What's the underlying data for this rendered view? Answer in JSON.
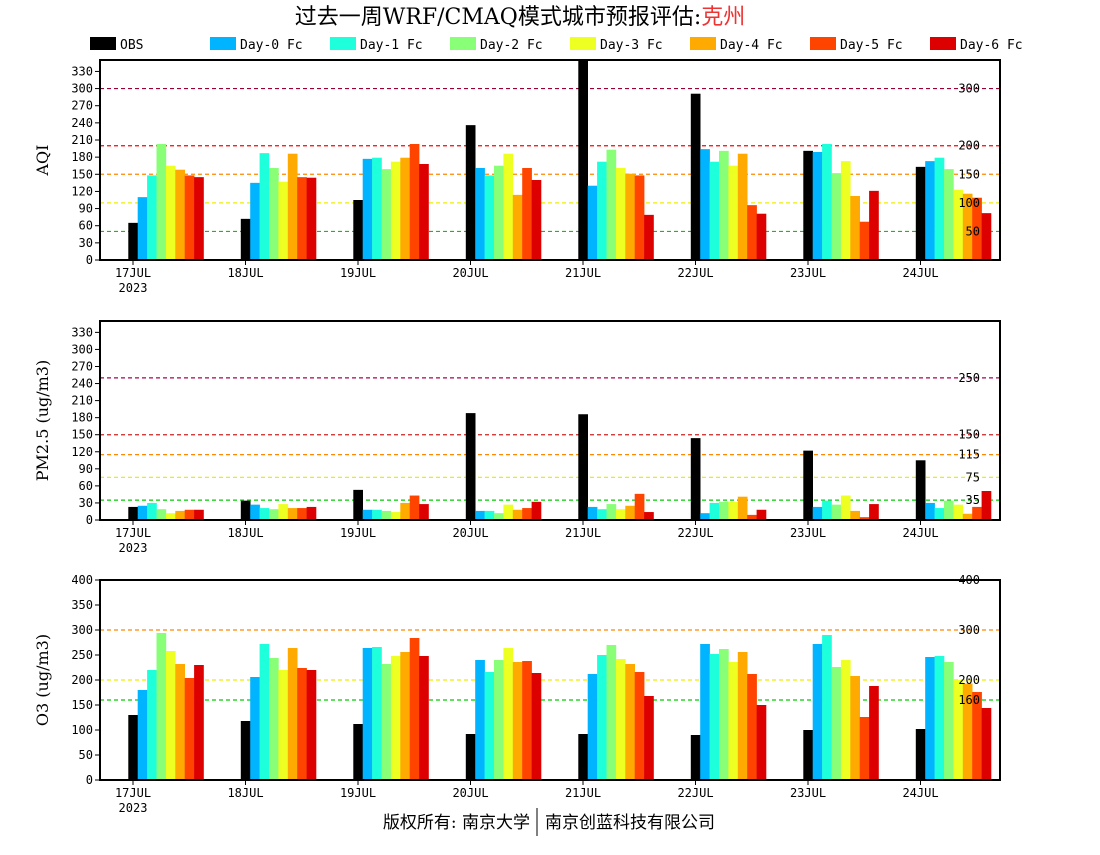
{
  "title": {
    "prefix": "过去一周WRF/CMAQ模式城市预报评估:",
    "city": "克州",
    "city_color": "#ee3333"
  },
  "footer": {
    "left": "版权所有: 南京大学",
    "right": "南京创蓝科技有限公司"
  },
  "legend": [
    {
      "name": "OBS",
      "color": "#000000"
    },
    {
      "name": "Day-0 Fc",
      "color": "#00b4ff"
    },
    {
      "name": "Day-1 Fc",
      "color": "#1effdc"
    },
    {
      "name": "Day-2 Fc",
      "color": "#88ff77"
    },
    {
      "name": "Day-3 Fc",
      "color": "#eeff22"
    },
    {
      "name": "Day-4 Fc",
      "color": "#ffaa00"
    },
    {
      "name": "Day-5 Fc",
      "color": "#ff4400"
    },
    {
      "name": "Day-6 Fc",
      "color": "#dd0000"
    }
  ],
  "chart_data": [
    {
      "type": "bar",
      "ylabel": "AQI",
      "ylim": [
        0,
        350
      ],
      "yticks": [
        0,
        30,
        60,
        90,
        120,
        150,
        180,
        210,
        240,
        270,
        300,
        330
      ],
      "categories": [
        "17JUL",
        "18JUL",
        "19JUL",
        "20JUL",
        "21JUL",
        "22JUL",
        "23JUL",
        "24JUL"
      ],
      "year_label": "2023",
      "thresholds": [
        {
          "value": 50,
          "label": "50",
          "color": "#00cc00"
        },
        {
          "value": 100,
          "label": "100",
          "color": "#eeee00"
        },
        {
          "value": 150,
          "label": "150",
          "color": "#ff8800"
        },
        {
          "value": 200,
          "label": "200",
          "color": "#ff0000"
        },
        {
          "value": 300,
          "label": "300",
          "color": "#990033"
        }
      ],
      "series": [
        {
          "name": "OBS",
          "values": [
            65,
            72,
            105,
            236,
            360,
            291,
            191,
            163
          ]
        },
        {
          "name": "Day-0 Fc",
          "values": [
            110,
            135,
            177,
            161,
            130,
            194,
            189,
            173
          ]
        },
        {
          "name": "Day-1 Fc",
          "values": [
            148,
            187,
            179,
            148,
            172,
            172,
            203,
            179
          ]
        },
        {
          "name": "Day-2 Fc",
          "values": [
            203,
            161,
            159,
            165,
            193,
            191,
            152,
            159
          ]
        },
        {
          "name": "Day-3 Fc",
          "values": [
            165,
            137,
            172,
            186,
            161,
            165,
            173,
            123
          ]
        },
        {
          "name": "Day-4 Fc",
          "values": [
            158,
            186,
            179,
            114,
            151,
            186,
            112,
            116
          ]
        },
        {
          "name": "Day-5 Fc",
          "values": [
            148,
            145,
            203,
            161,
            148,
            96,
            67,
            109
          ]
        },
        {
          "name": "Day-6 Fc",
          "values": [
            145,
            144,
            168,
            140,
            79,
            81,
            121,
            82
          ]
        }
      ]
    },
    {
      "type": "bar",
      "ylabel": "PM2.5 (ug/m3)",
      "ylim": [
        0,
        350
      ],
      "yticks": [
        0,
        30,
        60,
        90,
        120,
        150,
        180,
        210,
        240,
        270,
        300,
        330
      ],
      "categories": [
        "17JUL",
        "18JUL",
        "19JUL",
        "20JUL",
        "21JUL",
        "22JUL",
        "23JUL",
        "24JUL"
      ],
      "year_label": "2023",
      "thresholds": [
        {
          "value": 35,
          "label": "35",
          "color": "#00cc00"
        },
        {
          "value": 75,
          "label": "75",
          "color": "#eeee00"
        },
        {
          "value": 115,
          "label": "115",
          "color": "#ff8800"
        },
        {
          "value": 150,
          "label": "150",
          "color": "#cc2222"
        },
        {
          "value": 250,
          "label": "250",
          "color": "#aa0055"
        }
      ],
      "series": [
        {
          "name": "OBS",
          "values": [
            23,
            34,
            53,
            188,
            186,
            144,
            122,
            105
          ]
        },
        {
          "name": "Day-0 Fc",
          "values": [
            25,
            27,
            18,
            16,
            23,
            12,
            23,
            30
          ]
        },
        {
          "name": "Day-1 Fc",
          "values": [
            30,
            21,
            18,
            16,
            19,
            30,
            34,
            21
          ]
        },
        {
          "name": "Day-2 Fc",
          "values": [
            19,
            19,
            16,
            12,
            28,
            32,
            27,
            34
          ]
        },
        {
          "name": "Day-3 Fc",
          "values": [
            12,
            28,
            14,
            27,
            19,
            32,
            43,
            27
          ]
        },
        {
          "name": "Day-4 Fc",
          "values": [
            16,
            21,
            30,
            18,
            25,
            41,
            16,
            11
          ]
        },
        {
          "name": "Day-5 Fc",
          "values": [
            18,
            21,
            43,
            21,
            46,
            9,
            5,
            23
          ]
        },
        {
          "name": "Day-6 Fc",
          "values": [
            18,
            23,
            28,
            32,
            14,
            18,
            28,
            51
          ]
        }
      ]
    },
    {
      "type": "bar",
      "ylabel": "O3 (ug/m3)",
      "ylim": [
        0,
        400
      ],
      "yticks": [
        0,
        50,
        100,
        150,
        200,
        250,
        300,
        350,
        400
      ],
      "categories": [
        "17JUL",
        "18JUL",
        "19JUL",
        "20JUL",
        "21JUL",
        "22JUL",
        "23JUL",
        "24JUL"
      ],
      "year_label": "2023",
      "thresholds": [
        {
          "value": 160,
          "label": "160",
          "color": "#00cc00"
        },
        {
          "value": 200,
          "label": "200",
          "color": "#eeee00"
        },
        {
          "value": 300,
          "label": "300",
          "color": "#ff8800"
        },
        {
          "value": 400,
          "label": "400",
          "color": "#ff0000"
        }
      ],
      "series": [
        {
          "name": "OBS",
          "values": [
            130,
            118,
            112,
            92,
            92,
            90,
            100,
            102
          ]
        },
        {
          "name": "Day-0 Fc",
          "values": [
            180,
            206,
            264,
            240,
            212,
            272,
            272,
            246
          ]
        },
        {
          "name": "Day-1 Fc",
          "values": [
            220,
            272,
            266,
            216,
            250,
            252,
            290,
            248
          ]
        },
        {
          "name": "Day-2 Fc",
          "values": [
            294,
            244,
            232,
            240,
            270,
            262,
            226,
            236
          ]
        },
        {
          "name": "Day-3 Fc",
          "values": [
            258,
            220,
            248,
            264,
            242,
            236,
            240,
            200
          ]
        },
        {
          "name": "Day-4 Fc",
          "values": [
            232,
            264,
            256,
            236,
            232,
            256,
            208,
            193
          ]
        },
        {
          "name": "Day-5 Fc",
          "values": [
            204,
            224,
            284,
            238,
            216,
            212,
            126,
            176
          ]
        },
        {
          "name": "Day-6 Fc",
          "values": [
            230,
            220,
            248,
            214,
            168,
            150,
            188,
            144
          ]
        }
      ]
    }
  ]
}
